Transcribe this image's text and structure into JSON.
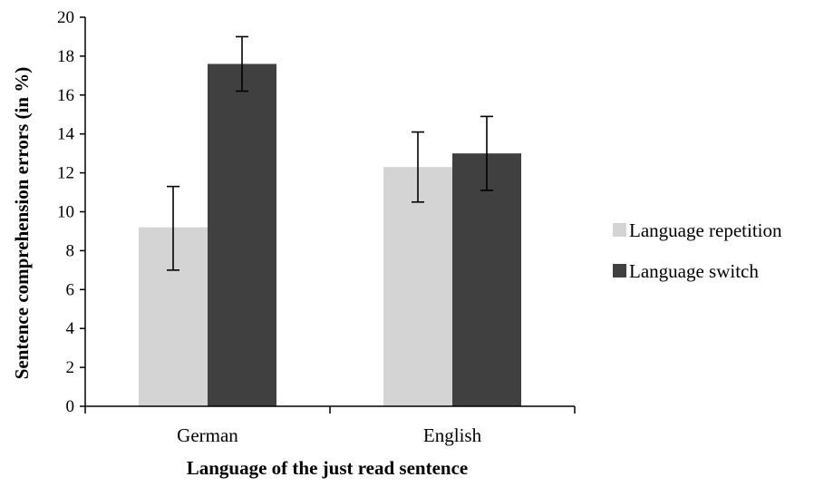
{
  "chart_data": {
    "type": "bar",
    "title": "",
    "xlabel": "Language of the just read sentence",
    "ylabel": "Sentence comprehension errors (in %)",
    "ylim": [
      0,
      20
    ],
    "yticks": [
      "0",
      "2",
      "4",
      "6",
      "8",
      "10",
      "12",
      "14",
      "16",
      "18",
      "20"
    ],
    "categories": [
      "German",
      "English"
    ],
    "series": [
      {
        "name": "Language repetition",
        "color": "#d4d4d4",
        "values": [
          9.2,
          12.3
        ],
        "error_low": [
          7.0,
          10.5
        ],
        "error_high": [
          11.3,
          14.1
        ]
      },
      {
        "name": "Language switch",
        "color": "#404040",
        "values": [
          17.6,
          13.0
        ],
        "error_low": [
          16.2,
          11.1
        ],
        "error_high": [
          19.0,
          14.9
        ]
      }
    ],
    "grid": false,
    "legend_position": "right"
  }
}
